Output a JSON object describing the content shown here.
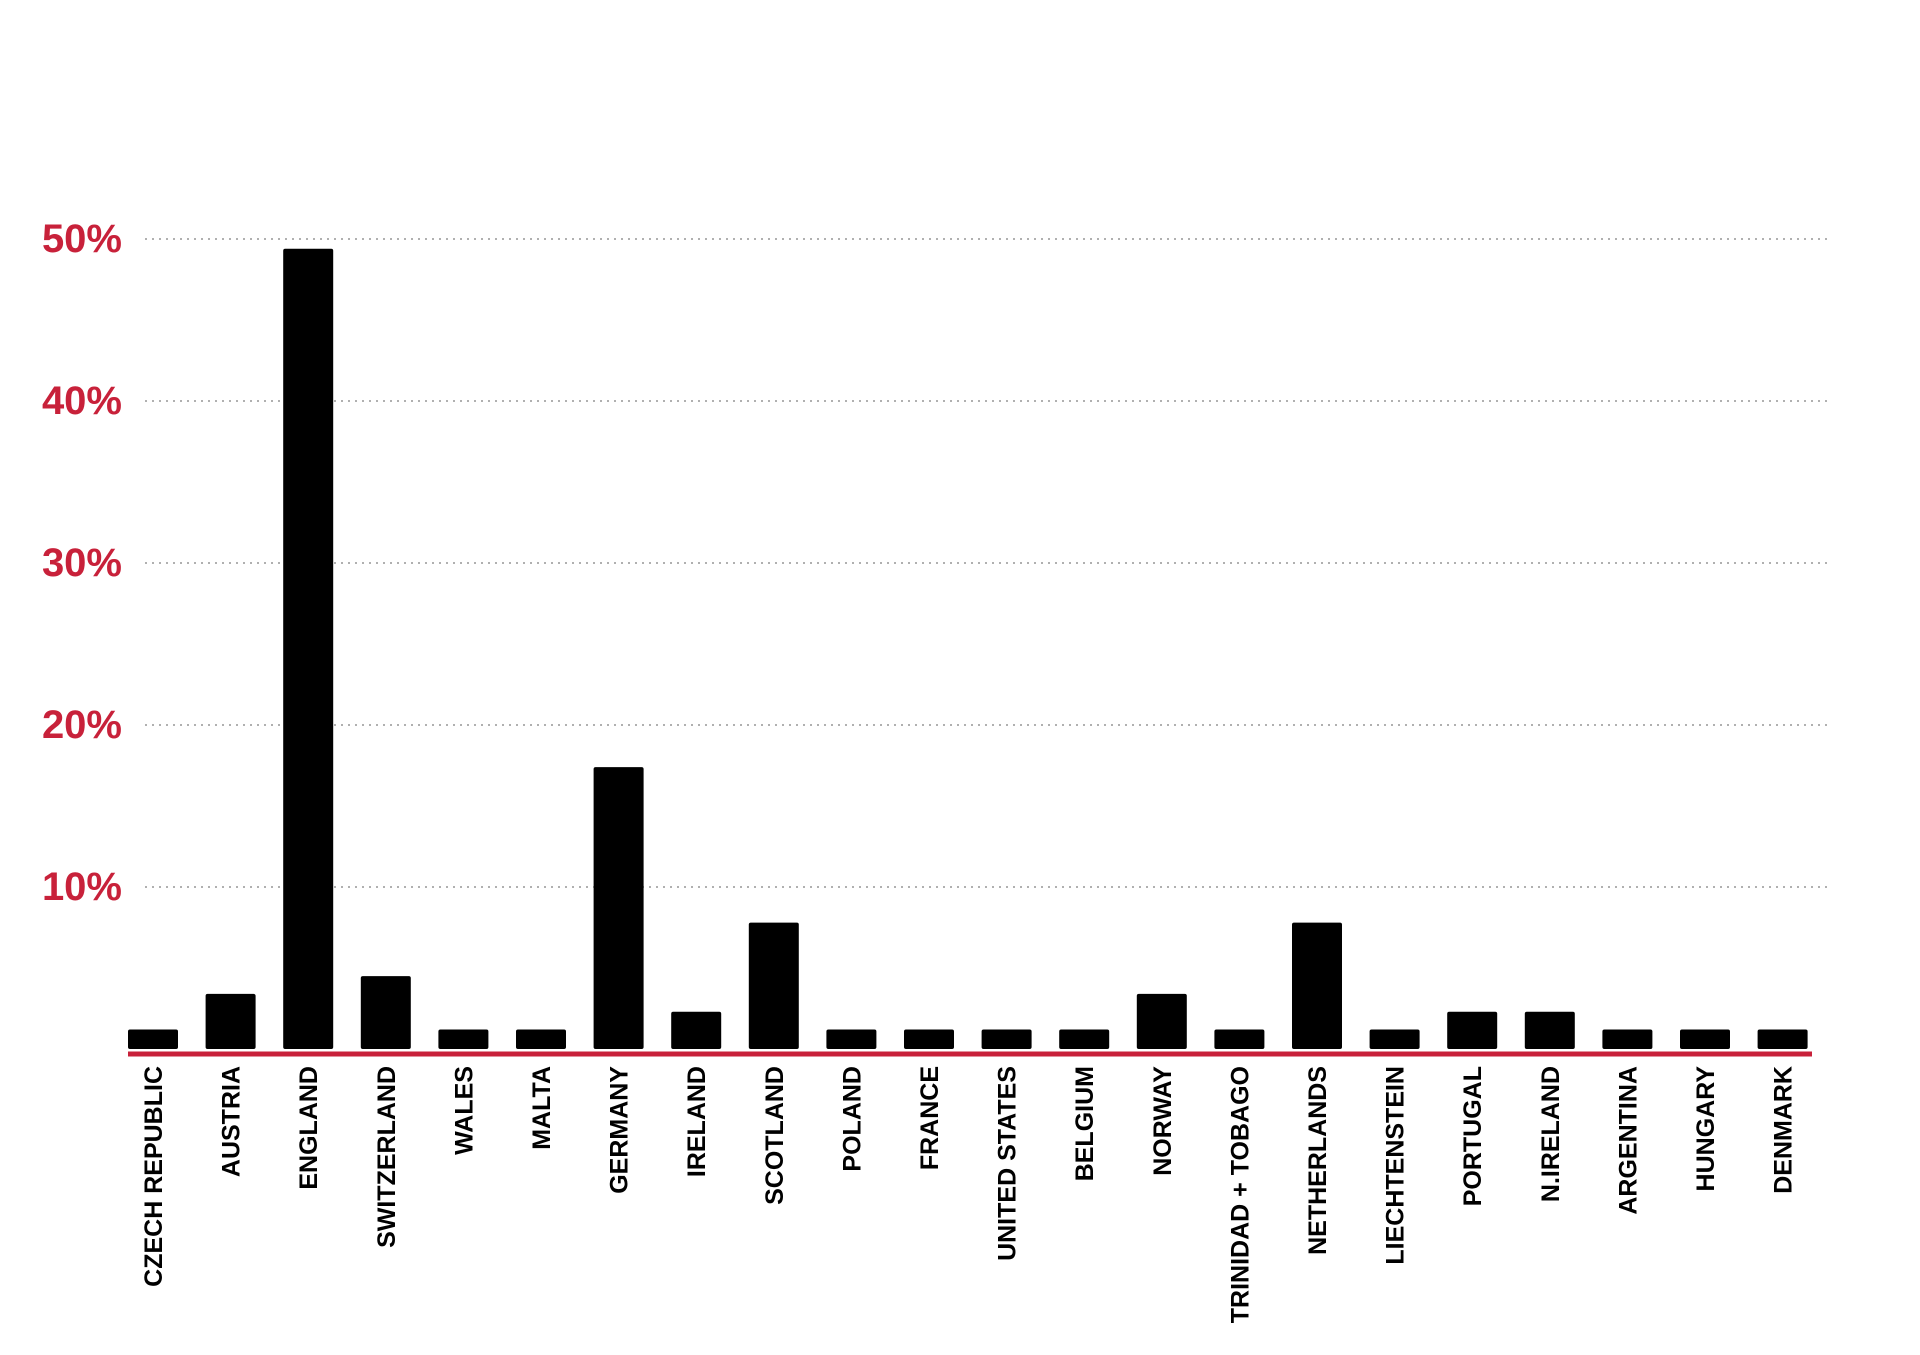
{
  "colors": {
    "bar": "#000000",
    "axis_line": "#c8213a",
    "tick_label": "#c8213a",
    "grid": "#b0b0b0",
    "background": "#ffffff"
  },
  "chart_data": {
    "type": "bar",
    "title": "",
    "xlabel": "",
    "ylabel": "",
    "ylim": [
      0,
      52
    ],
    "grid": true,
    "grid_style": "dotted",
    "legend": "none",
    "y_ticks": [
      {
        "value": 10,
        "label": "10%"
      },
      {
        "value": 20,
        "label": "20%"
      },
      {
        "value": 30,
        "label": "30%"
      },
      {
        "value": 40,
        "label": "40%"
      },
      {
        "value": 50,
        "label": "50%"
      }
    ],
    "categories": [
      "CZECH REPUBLIC",
      "AUSTRIA",
      "ENGLAND",
      "SWITZERLAND",
      "WALES",
      "MALTA",
      "GERMANY",
      "IRELAND",
      "SCOTLAND",
      "POLAND",
      "FRANCE",
      "UNITED STATES",
      "BELGIUM",
      "NORWAY",
      "TRINIDAD + TOBAGO",
      "NETHERLANDS",
      "LIECHTENSTEIN",
      "PORTUGAL",
      "N.IRELAND",
      "ARGENTINA",
      "HUNGARY",
      "DENMARK"
    ],
    "values": [
      1.2,
      3.4,
      49.4,
      4.5,
      1.2,
      1.2,
      17.4,
      2.3,
      7.8,
      1.2,
      1.2,
      1.2,
      1.2,
      3.4,
      1.2,
      7.8,
      1.2,
      2.3,
      2.3,
      1.2,
      1.2,
      1.2
    ]
  }
}
